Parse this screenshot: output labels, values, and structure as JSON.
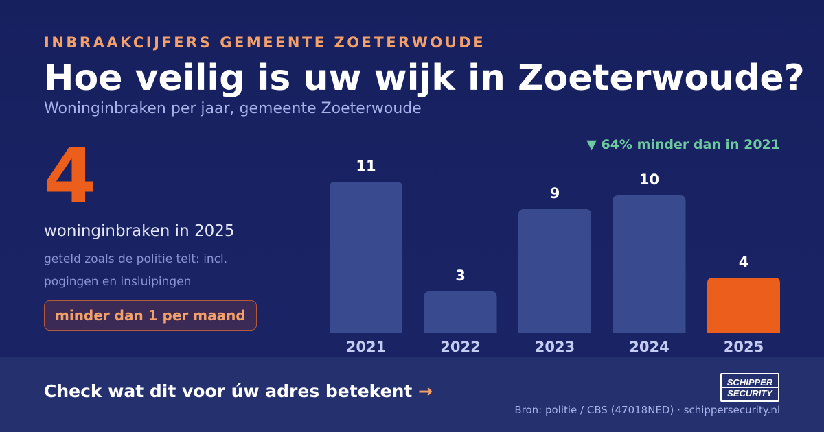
{
  "header": {
    "eyebrow": "INBRAAKCIJFERS GEMEENTE ZOETERWOUDE",
    "title": "Hoe veilig is uw wijk in Zoeterwoude?",
    "subtitle": "Woninginbraken per jaar, gemeente Zoeterwoude"
  },
  "highlight": {
    "number": "4",
    "caption": "woninginbraken in 2025",
    "note": "geteld zoals de politie telt: incl. pogingen en insluipingen",
    "pill": "minder dan 1 per maand"
  },
  "delta": "▼ 64% minder dan in 2021",
  "footer": {
    "cta": "Check wat dit voor úw adres betekent",
    "cta_arrow": "→",
    "logo_line1": "SCHIPPER",
    "logo_line2": "SECURITY",
    "source": "Bron: politie / CBS (47018NED) · schippersecurity.nl"
  },
  "colors": {
    "bar": "#3a4a8e",
    "bar_highlight": "#ec5e1b",
    "accent": "#f4a06a",
    "positive": "#6ec9a0"
  },
  "chart_data": {
    "type": "bar",
    "categories": [
      "2021",
      "2022",
      "2023",
      "2024",
      "2025"
    ],
    "values": [
      11,
      3,
      9,
      10,
      4
    ],
    "highlight_category": "2025",
    "ylim": [
      0,
      11
    ],
    "grid": false,
    "legend": "none"
  }
}
